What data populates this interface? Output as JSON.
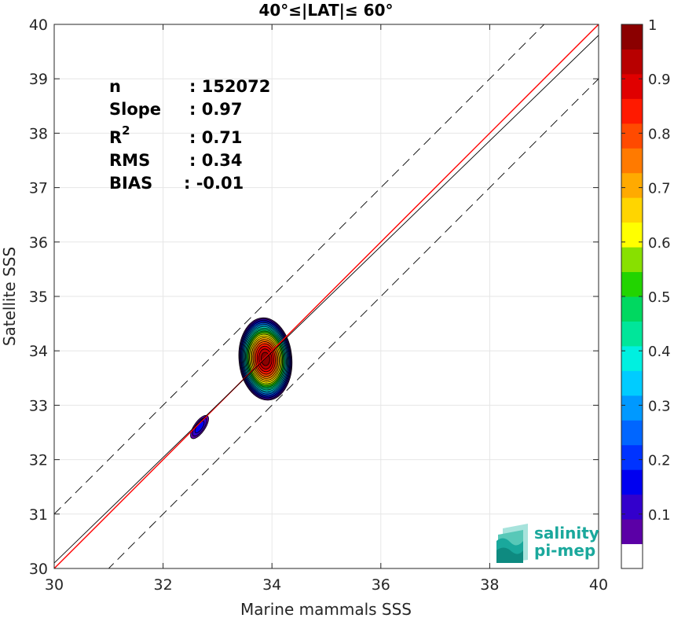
{
  "chart_data": {
    "type": "scatter",
    "title": "40°≤|LAT|≤ 60°",
    "xlabel": "Marine mammals SSS",
    "ylabel": "Satellite SSS",
    "xlim": [
      30,
      40
    ],
    "ylim": [
      30,
      40
    ],
    "xticks": [
      30,
      32,
      34,
      36,
      38,
      40
    ],
    "yticks": [
      30,
      31,
      32,
      33,
      34,
      35,
      36,
      37,
      38,
      39,
      40
    ],
    "grid": true,
    "stats": [
      {
        "label": "n",
        "value": ": 152072"
      },
      {
        "label": "Slope",
        "value": ": 0.97"
      },
      {
        "label": "R",
        "sup": "2",
        "value": ": 0.71"
      },
      {
        "label": "RMS",
        "value": ": 0.34"
      },
      {
        "label": "BIAS",
        "value": ": -0.01"
      }
    ],
    "lines": [
      {
        "name": "",
        "style": "solid",
        "color": "#ff0000",
        "slope": 1.0,
        "intercept": 0.0
      },
      {
        "name": "",
        "style": "solid",
        "color": "#000000",
        "slope": 0.97,
        "intercept": 1.0
      },
      {
        "name": "",
        "style": "dashed",
        "color": "#000000",
        "slope": 1.0,
        "intercept": 1.0
      },
      {
        "name": "",
        "style": "dashed",
        "color": "#000000",
        "slope": 1.0,
        "intercept": -1.0
      }
    ],
    "density_clusters": [
      {
        "cx": 33.88,
        "cy": 33.85,
        "rx": 0.5,
        "ry": 0.78,
        "rotate": -5,
        "peak": 1.0
      },
      {
        "cx": 32.67,
        "cy": 32.6,
        "rx": 0.12,
        "ry": 0.3,
        "rotate": 35,
        "peak": 0.18
      }
    ],
    "colorbar": {
      "min": 0,
      "max": 1,
      "ticks": [
        0.1,
        0.2,
        0.3,
        0.4,
        0.5,
        0.6,
        0.7,
        0.8,
        0.9,
        1
      ],
      "tick_labels": [
        "0.1",
        "0.2",
        "0.3",
        "0.4",
        "0.5",
        "0.6",
        "0.7",
        "0.8",
        "0.9",
        "1"
      ],
      "colors": [
        "#ffffff",
        "#5b00a6",
        "#3300cc",
        "#0000f0",
        "#0033ff",
        "#0066ff",
        "#0099ff",
        "#00ccff",
        "#00f0e0",
        "#00e69a",
        "#00d860",
        "#22d400",
        "#88e000",
        "#ffff00",
        "#ffd500",
        "#ffaa00",
        "#ff7a00",
        "#ff4a00",
        "#ff1a00",
        "#e00000",
        "#b80000",
        "#8b0000"
      ]
    }
  },
  "logo": {
    "line1": "salinity",
    "line2": "pi-mep"
  }
}
